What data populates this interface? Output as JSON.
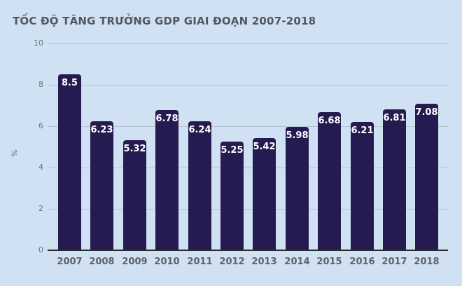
{
  "chart_data": {
    "type": "bar",
    "title": "TỐC ĐỘ TĂNG TRƯỞNG GDP GIAI ĐOẠN 2007-2018",
    "categories": [
      "2007",
      "2008",
      "2009",
      "2010",
      "2011",
      "2012",
      "2013",
      "2014",
      "2015",
      "2016",
      "2017",
      "2018"
    ],
    "values": [
      8.5,
      6.23,
      5.32,
      6.78,
      6.24,
      5.25,
      5.42,
      5.98,
      6.68,
      6.21,
      6.81,
      7.08
    ],
    "value_labels": [
      "8.5",
      "6.23",
      "5.32",
      "6.78",
      "6.24",
      "5.25",
      "5.42",
      "5.98",
      "6.68",
      "6.21",
      "6.81",
      "7.08"
    ],
    "xlabel": "",
    "ylabel": "%",
    "ylim": [
      0,
      10
    ],
    "yticks": [
      0,
      2,
      4,
      6,
      8,
      10
    ],
    "grid": true,
    "legend": "none",
    "colors": {
      "background": "#cfe1f3",
      "bar": "#261b50",
      "gridline": "#b7c4d2",
      "baseline": "#2b2b2b",
      "title": "#56575b",
      "tick_label": "#6e7276",
      "category_label": "#5e6165",
      "value_label": "#ffffff"
    }
  }
}
